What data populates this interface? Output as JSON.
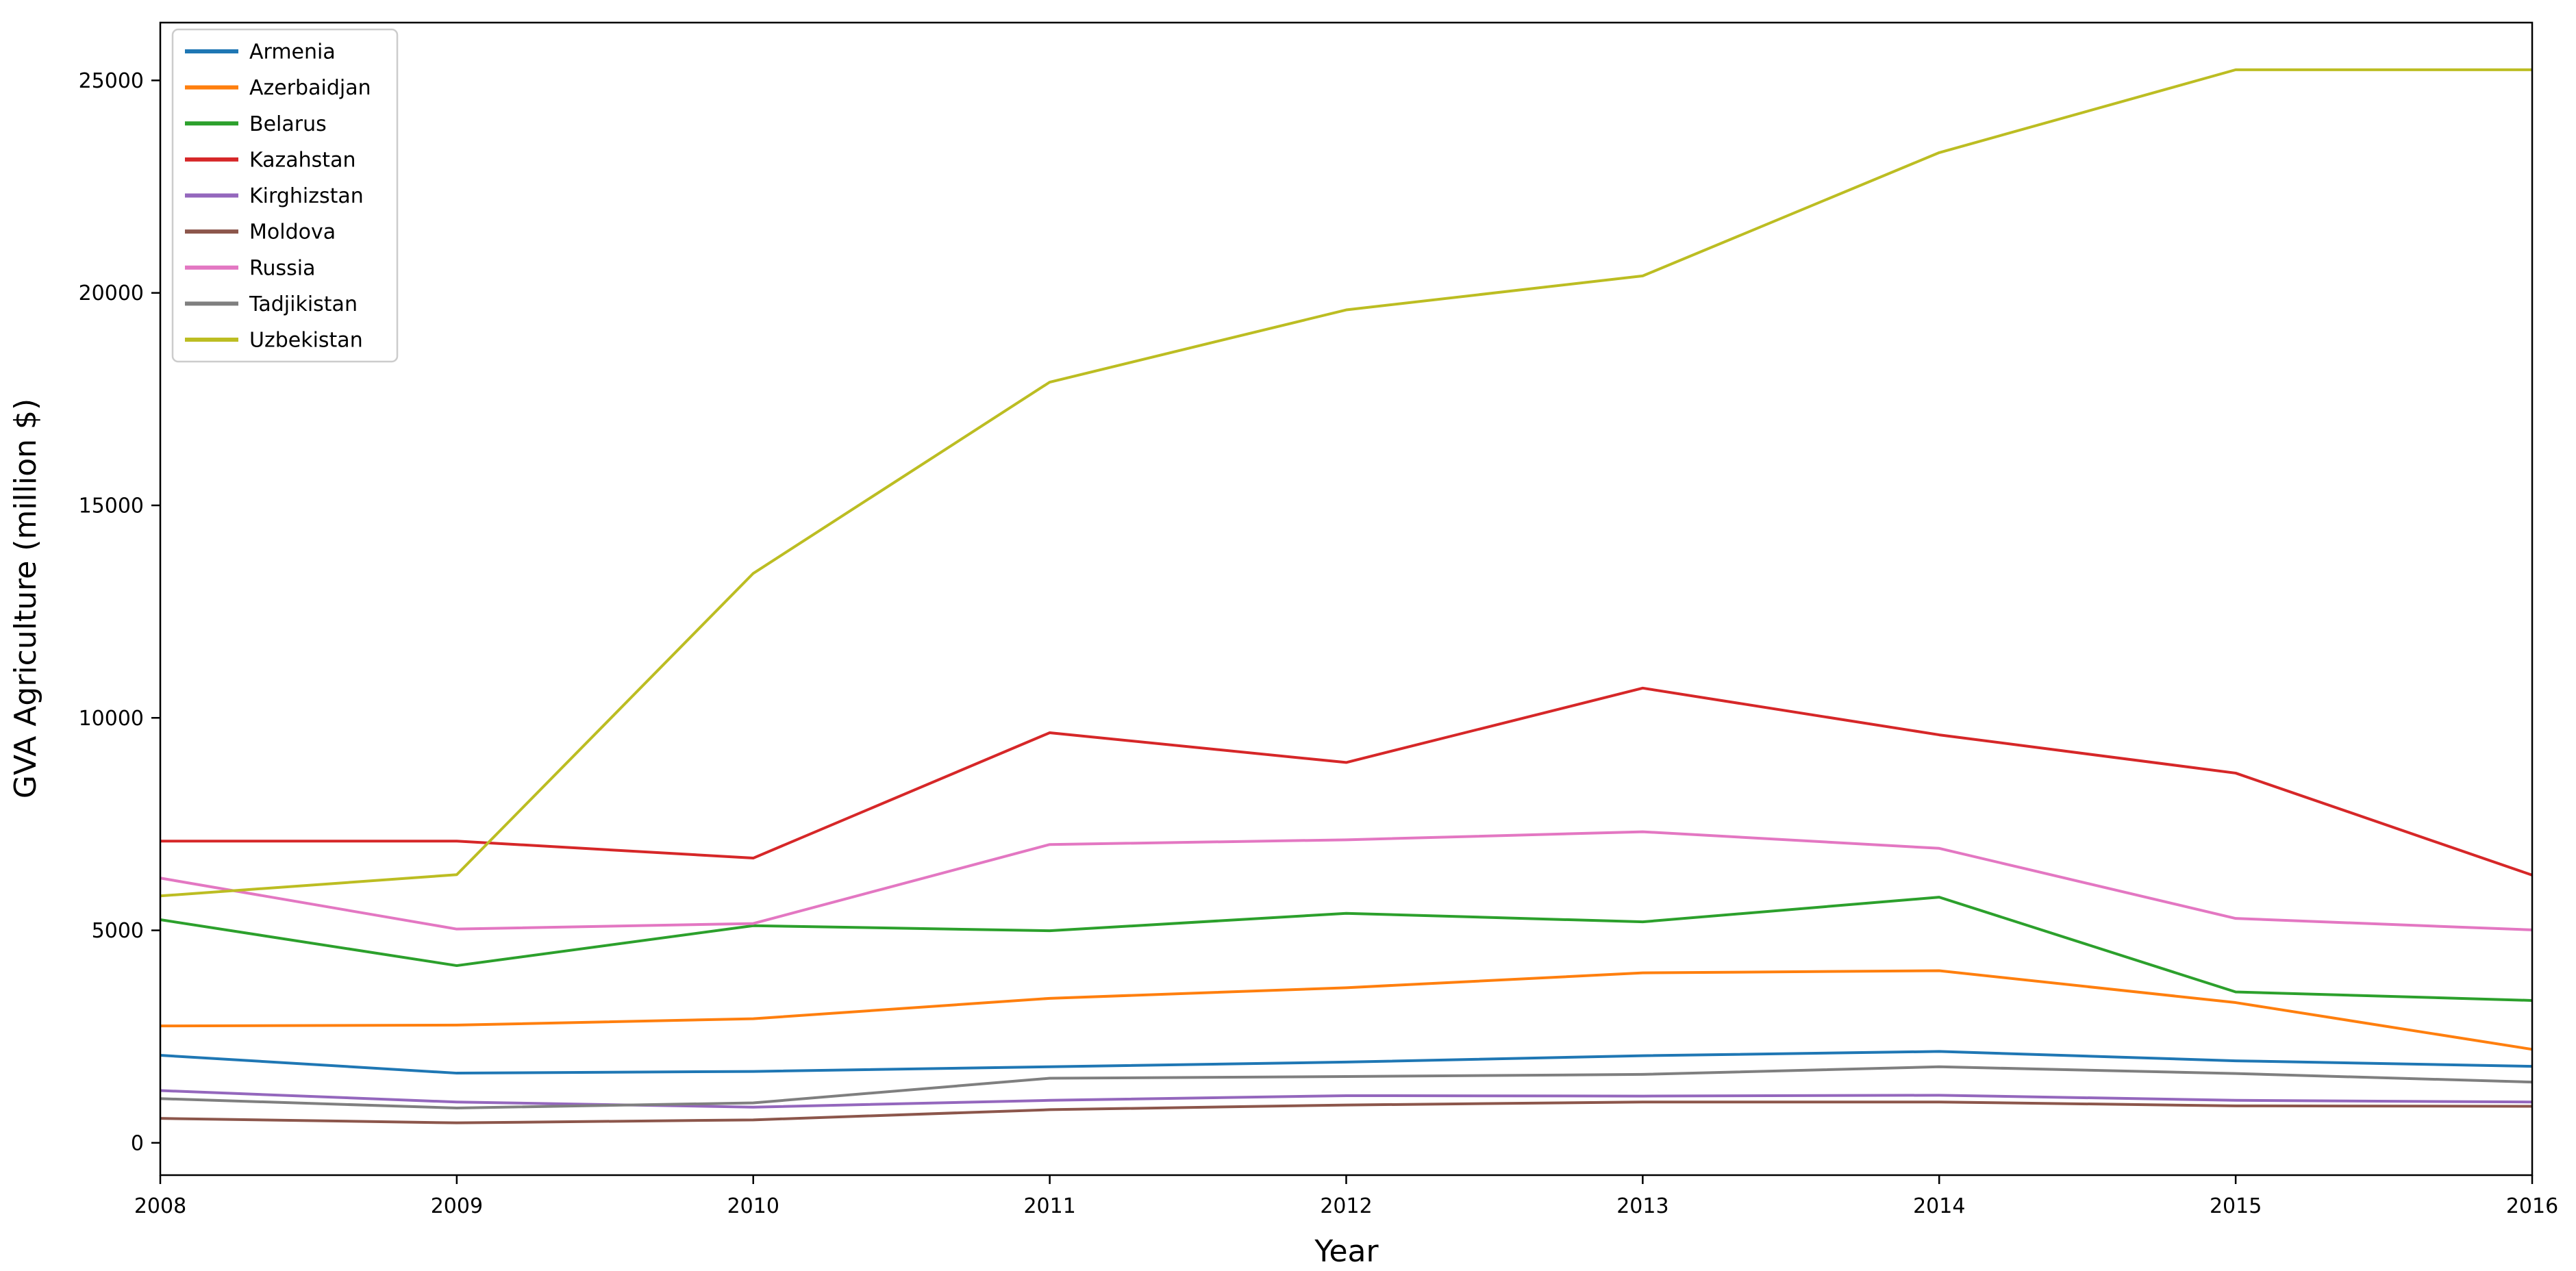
{
  "figure": {
    "background": "#ffffff",
    "axes_edge_color": "#000000",
    "legend_border_color": "#cccccc"
  },
  "chart_data": {
    "type": "line",
    "title": "",
    "xlabel": "Year",
    "ylabel": "GVA Agriculture (million $)",
    "grid": false,
    "legend_position": "upper left",
    "x": [
      2008,
      2009,
      2010,
      2011,
      2012,
      2013,
      2014,
      2015,
      2016
    ],
    "xticks": [
      2008,
      2009,
      2010,
      2011,
      2012,
      2013,
      2014,
      2015,
      2016
    ],
    "yticks": [
      0,
      5000,
      10000,
      15000,
      20000,
      25000
    ],
    "xlim": [
      2008,
      2016
    ],
    "ylim": [
      -760,
      26360
    ],
    "series": [
      {
        "name": "Armenia",
        "color": "#1f77b4",
        "values": [
          2060,
          1640,
          1680,
          1790,
          1900,
          2050,
          2150,
          1930,
          1800
        ]
      },
      {
        "name": "Azerbaidjan",
        "color": "#ff7f0e",
        "values": [
          2750,
          2770,
          2920,
          3400,
          3650,
          4000,
          4050,
          3300,
          2200
        ]
      },
      {
        "name": "Belarus",
        "color": "#2ca02c",
        "values": [
          5250,
          4170,
          5110,
          4990,
          5400,
          5200,
          5780,
          3550,
          3350
        ]
      },
      {
        "name": "Kazahstan",
        "color": "#d62728",
        "values": [
          7100,
          7100,
          6700,
          9650,
          8950,
          10700,
          9600,
          8700,
          6300
        ]
      },
      {
        "name": "Kirghizstan",
        "color": "#9467bd",
        "values": [
          1230,
          960,
          840,
          1000,
          1110,
          1100,
          1120,
          1000,
          960
        ]
      },
      {
        "name": "Moldova",
        "color": "#8c564b",
        "values": [
          575,
          470,
          540,
          780,
          890,
          960,
          960,
          870,
          860
        ]
      },
      {
        "name": "Russia",
        "color": "#e377c2",
        "values": [
          6230,
          5030,
          5160,
          7020,
          7130,
          7320,
          6930,
          5280,
          5010
        ]
      },
      {
        "name": "Tadjikistan",
        "color": "#7f7f7f",
        "values": [
          1040,
          820,
          940,
          1520,
          1560,
          1610,
          1790,
          1630,
          1430
        ]
      },
      {
        "name": "Uzbekistan",
        "color": "#bcbd22",
        "values": [
          5810,
          6310,
          13400,
          17900,
          19600,
          20400,
          23300,
          25250,
          25250
        ]
      }
    ]
  }
}
